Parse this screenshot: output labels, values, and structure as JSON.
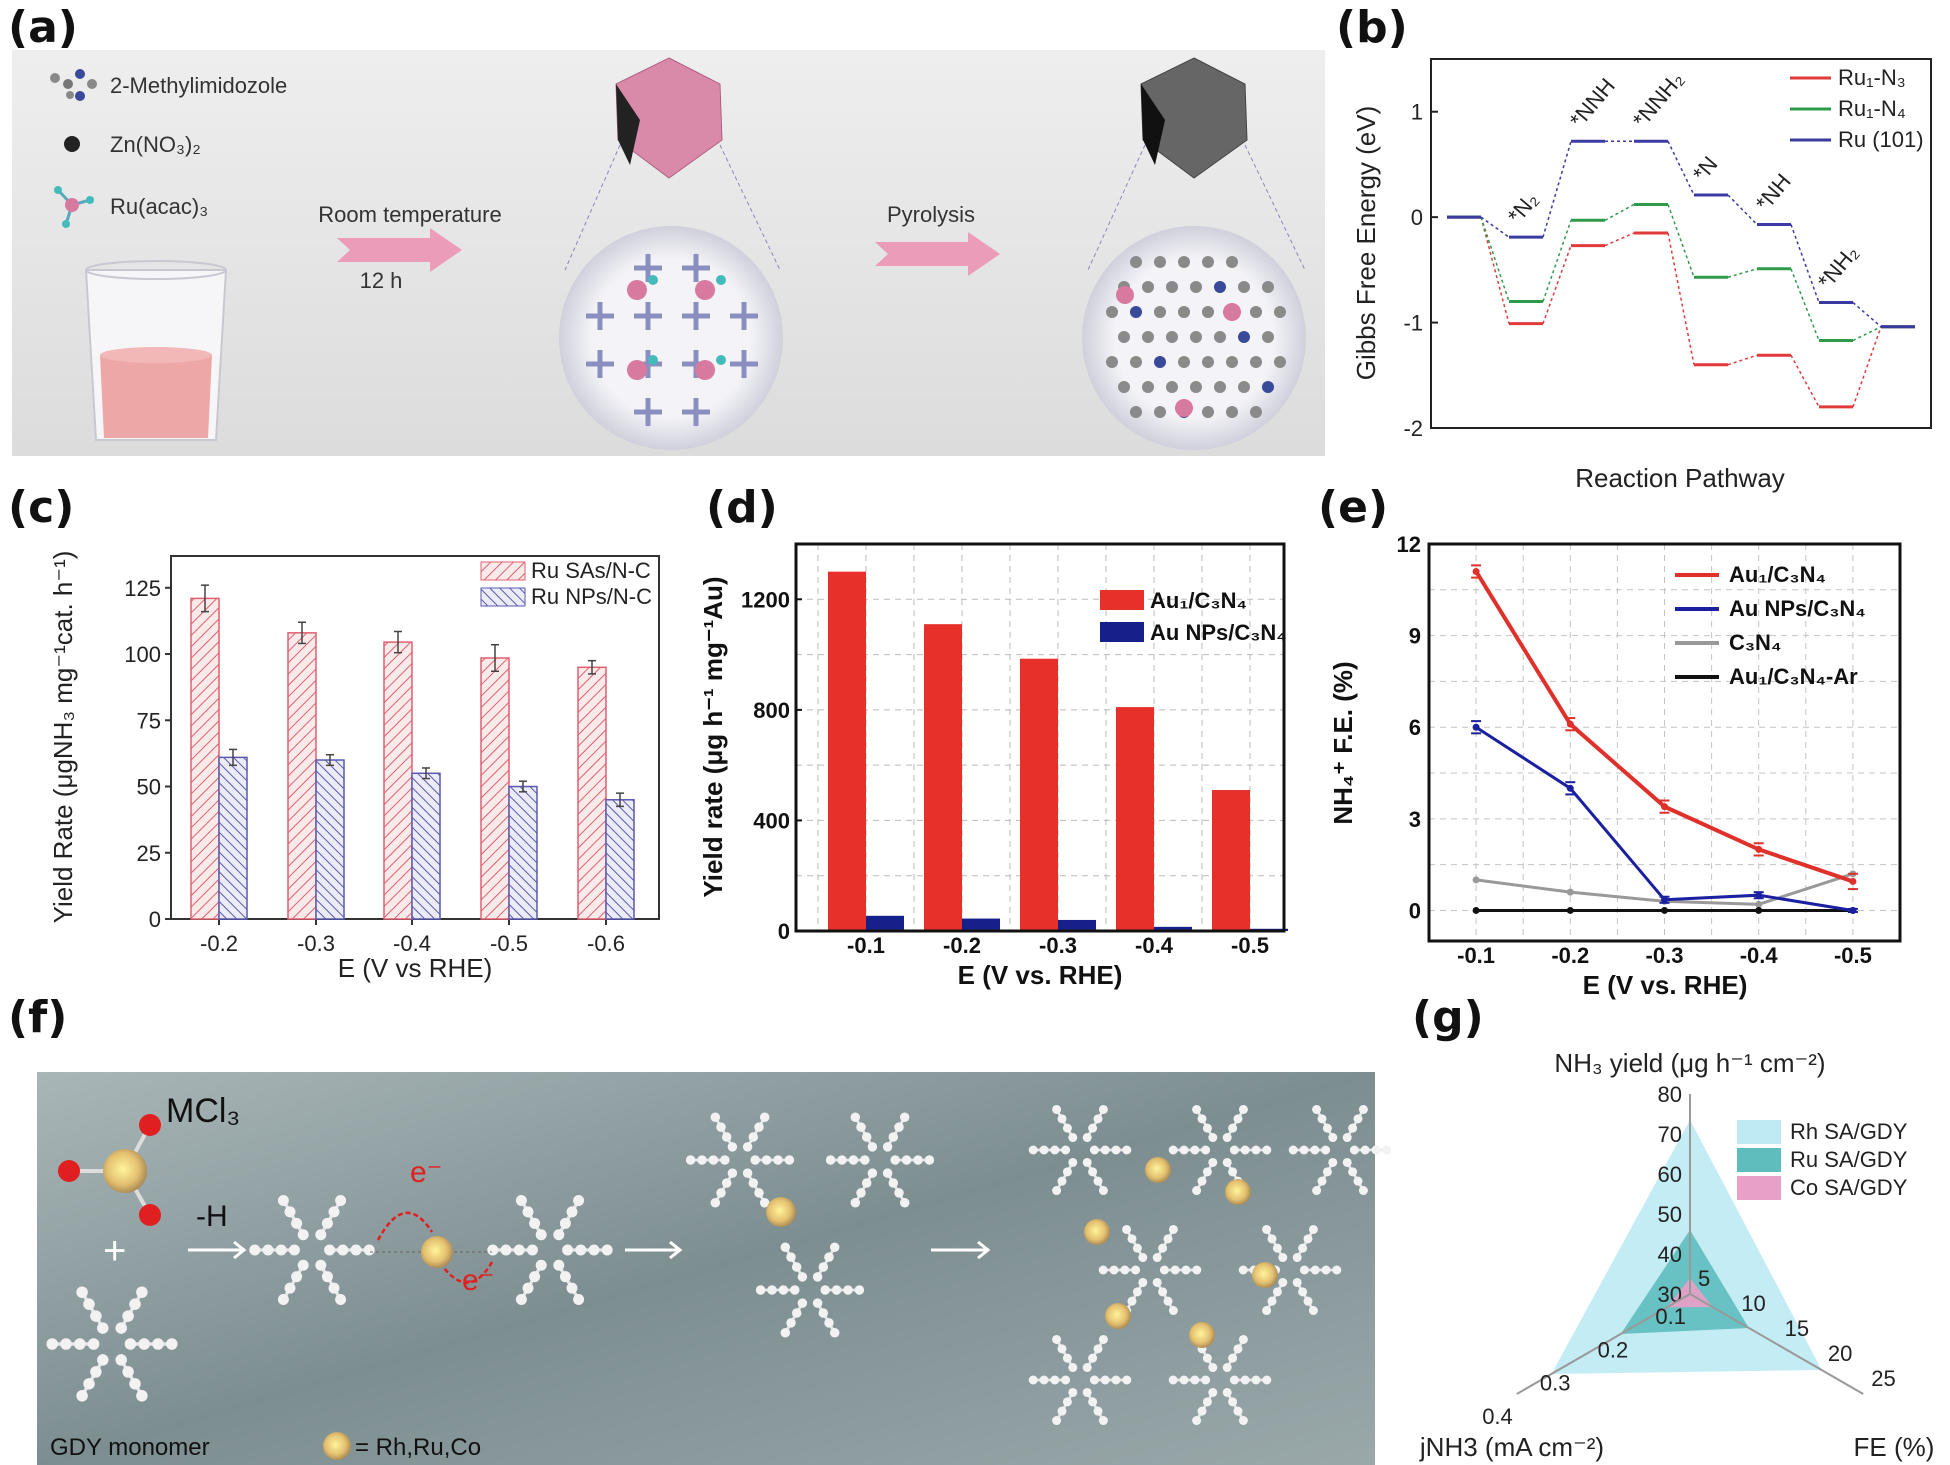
{
  "panel_labels": [
    "(a)",
    "(b)",
    "(c)",
    "(d)",
    "(e)",
    "(f)",
    "(g)"
  ],
  "panel_a": {
    "legend": [
      "2-Methylimidozole",
      "Zn(NO₃)₂",
      "Ru(acac)₃"
    ],
    "step1_label": "Room temperature",
    "step1_time": "12 h",
    "step2_label": "Pyrolysis",
    "colors": {
      "zif": "#d98aa8",
      "carbon": "#555555",
      "ru_atom": "#d87aa0",
      "solution": "#eea7a7"
    }
  },
  "panel_f": {
    "precursor": "MCl₃",
    "plus": "+",
    "step_label": "-H",
    "electron_labels": [
      "e⁻",
      "e⁻"
    ],
    "monomer_label": "GDY monomer",
    "metal_legend": "= Rh,Ru,Co",
    "colors": {
      "metal": "#e8c36a",
      "chlorine": "#e02020",
      "carbon": "#eeeeee",
      "electron": "#e02020"
    }
  },
  "chart_data": [
    {
      "panel": "b",
      "type": "line",
      "xlabel": "Reaction Pathway",
      "ylabel": "Gibbs Free Energy (eV)",
      "ylim": [
        -2,
        1.5
      ],
      "yticks": [
        -2,
        -1,
        0,
        1
      ],
      "state_labels": [
        "*N₂",
        "*NNH",
        "*NNH₂",
        "*N",
        "*NH",
        "*NH₂"
      ],
      "legend_position": "top-right",
      "series": [
        {
          "name": "Ru₁-N₃",
          "color": "#e03a3a",
          "values": [
            0,
            -1.01,
            -0.27,
            -0.15,
            -1.4,
            -1.31,
            -1.8,
            -1.04
          ]
        },
        {
          "name": "Ru₁-N₄",
          "color": "#2e9a4a",
          "values": [
            0,
            -0.8,
            -0.03,
            0.12,
            -0.57,
            -0.49,
            -1.17,
            -1.04
          ]
        },
        {
          "name": "Ru (101)",
          "color": "#3a3aa0",
          "values": [
            0,
            -0.19,
            0.72,
            0.72,
            0.21,
            -0.07,
            -0.81,
            -1.04
          ]
        }
      ]
    },
    {
      "panel": "c",
      "type": "bar",
      "xlabel": "E (V vs RHE)",
      "ylabel": "Yield Rate (μgNH₃ mg⁻¹cat. h⁻¹)",
      "categories": [
        "-0.2",
        "-0.3",
        "-0.4",
        "-0.5",
        "-0.6"
      ],
      "ylim": [
        0,
        137
      ],
      "yticks": [
        0,
        25,
        50,
        75,
        100,
        125
      ],
      "legend_position": "top-right",
      "series": [
        {
          "name": "Ru SAs/N-C",
          "color": "#e06070",
          "hatch": "forward",
          "values": [
            121,
            108,
            104.5,
            98.5,
            95
          ],
          "errors": [
            5,
            4,
            4,
            5,
            2.5
          ]
        },
        {
          "name": "Ru NPs/N-C",
          "color": "#5a5ab0",
          "hatch": "backward",
          "values": [
            61,
            60,
            55,
            50,
            45
          ],
          "errors": [
            3,
            2,
            2,
            2,
            2.5
          ]
        }
      ]
    },
    {
      "panel": "d",
      "type": "bar",
      "xlabel": "E (V vs. RHE)",
      "ylabel": "Yield rate (μg h⁻¹ mg⁻¹Au)",
      "categories": [
        "-0.1",
        "-0.2",
        "-0.3",
        "-0.4",
        "-0.5"
      ],
      "ylim": [
        0,
        1400
      ],
      "yticks": [
        0,
        400,
        800,
        1200
      ],
      "grid": true,
      "legend_position": "top-right",
      "series": [
        {
          "name": "Au₁/C₃N₄",
          "color": "#e8302a",
          "values": [
            1300,
            1110,
            985,
            810,
            510
          ]
        },
        {
          "name": "Au NPs/C₃N₄",
          "color": "#15208a",
          "values": [
            55,
            45,
            40,
            15,
            8
          ]
        }
      ]
    },
    {
      "panel": "e",
      "type": "line",
      "xlabel": "E (V vs. RHE)",
      "ylabel": "NH₄⁺ F.E. (%)",
      "x": [
        -0.1,
        -0.2,
        -0.3,
        -0.4,
        -0.5
      ],
      "xticks": [
        "-0.1",
        "-0.2",
        "-0.3",
        "-0.4",
        "-0.5"
      ],
      "xlim": [
        -0.05,
        -0.55
      ],
      "ylim": [
        -1,
        12
      ],
      "yticks": [
        0,
        3,
        6,
        9,
        12
      ],
      "grid": true,
      "legend_position": "top-right",
      "series": [
        {
          "name": "Au₁/C₃N₄",
          "color": "#e0302a",
          "values": [
            11.1,
            6.1,
            3.4,
            2.0,
            0.95
          ],
          "errors": [
            0.2,
            0.2,
            0.2,
            0.2,
            0.25
          ]
        },
        {
          "name": "Au NPs/C₃N₄",
          "color": "#1a20a0",
          "values": [
            6.0,
            4.0,
            0.35,
            0.5,
            0.0
          ],
          "errors": [
            0.2,
            0.2,
            0.1,
            0.1,
            0.05
          ]
        },
        {
          "name": "C₃N₄",
          "color": "#999999",
          "values": [
            1.0,
            0.6,
            0.3,
            0.2,
            1.2
          ]
        },
        {
          "name": "Au₁/C₃N₄-Ar",
          "color": "#111111",
          "values": [
            0,
            0,
            0,
            0,
            0
          ]
        }
      ]
    },
    {
      "panel": "g",
      "type": "radar",
      "axes": [
        {
          "label": "NH₃ yield (μg h⁻¹ cm⁻²)",
          "range": [
            30,
            80
          ],
          "ticks": [
            30,
            40,
            50,
            60,
            70,
            80
          ]
        },
        {
          "label": "jNH3 (mA cm⁻²)",
          "range": [
            0.1,
            0.4
          ],
          "ticks": [
            0.1,
            0.2,
            0.3,
            0.4
          ]
        },
        {
          "label": "FE (%)",
          "range": [
            5,
            25
          ],
          "ticks": [
            5,
            10,
            15,
            20,
            25
          ]
        }
      ],
      "legend_position": "top-right",
      "series": [
        {
          "name": "Rh SA/GDY",
          "color": "#bfeaf3",
          "values": [
            73.5,
            0.34,
            20.2
          ]
        },
        {
          "name": "Ru SA/GDY",
          "color": "#5fbdbd",
          "values": [
            46,
            0.22,
            11.8
          ]
        },
        {
          "name": "Co SA/GDY",
          "color": "#e8a0c8",
          "values": [
            34,
            0.14,
            7.6
          ]
        }
      ]
    }
  ]
}
